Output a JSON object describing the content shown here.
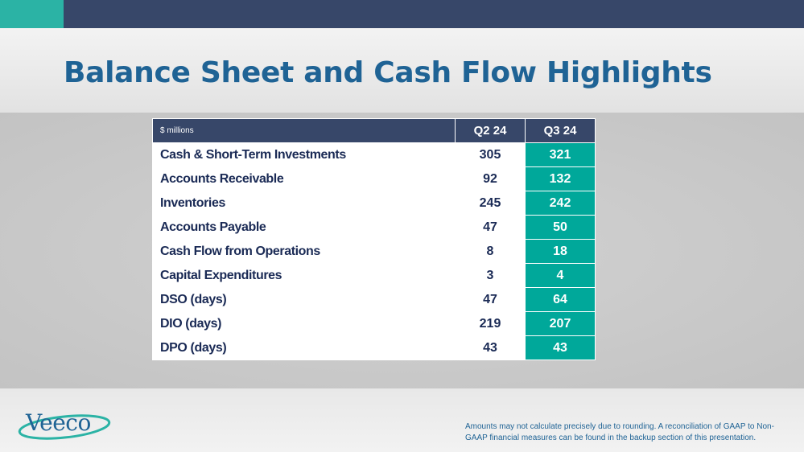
{
  "colors": {
    "header_bar": "#374769",
    "accent_teal": "#2bb3a5",
    "title_blue": "#1f6395",
    "highlight_column": "#00a89a",
    "row_text": "#1a2a55"
  },
  "slide": {
    "title": "Balance Sheet and Cash Flow Highlights"
  },
  "table": {
    "units_label": "$ millions",
    "columns": [
      "Q2 24",
      "Q3 24"
    ],
    "rows": [
      {
        "label": "Cash & Short-Term Investments",
        "q2": "305",
        "q3": "321"
      },
      {
        "label": "Accounts Receivable",
        "q2": "92",
        "q3": "132"
      },
      {
        "label": "Inventories",
        "q2": "245",
        "q3": "242"
      },
      {
        "label": "Accounts Payable",
        "q2": "47",
        "q3": "50"
      },
      {
        "label": "Cash Flow from Operations",
        "q2": "8",
        "q3": "18"
      },
      {
        "label": "Capital Expenditures",
        "q2": "3",
        "q3": "4"
      },
      {
        "label": "DSO (days)",
        "q2": "47",
        "q3": "64"
      },
      {
        "label": "DIO (days)",
        "q2": "219",
        "q3": "207"
      },
      {
        "label": "DPO (days)",
        "q2": "43",
        "q3": "43"
      }
    ]
  },
  "logo": {
    "text": "Veeco",
    "icon": "veeco-logo-icon"
  },
  "footnote": "Amounts may not calculate precisely due to rounding.  A reconciliation of GAAP to Non-GAAP financial measures can be found in the backup section of this presentation."
}
